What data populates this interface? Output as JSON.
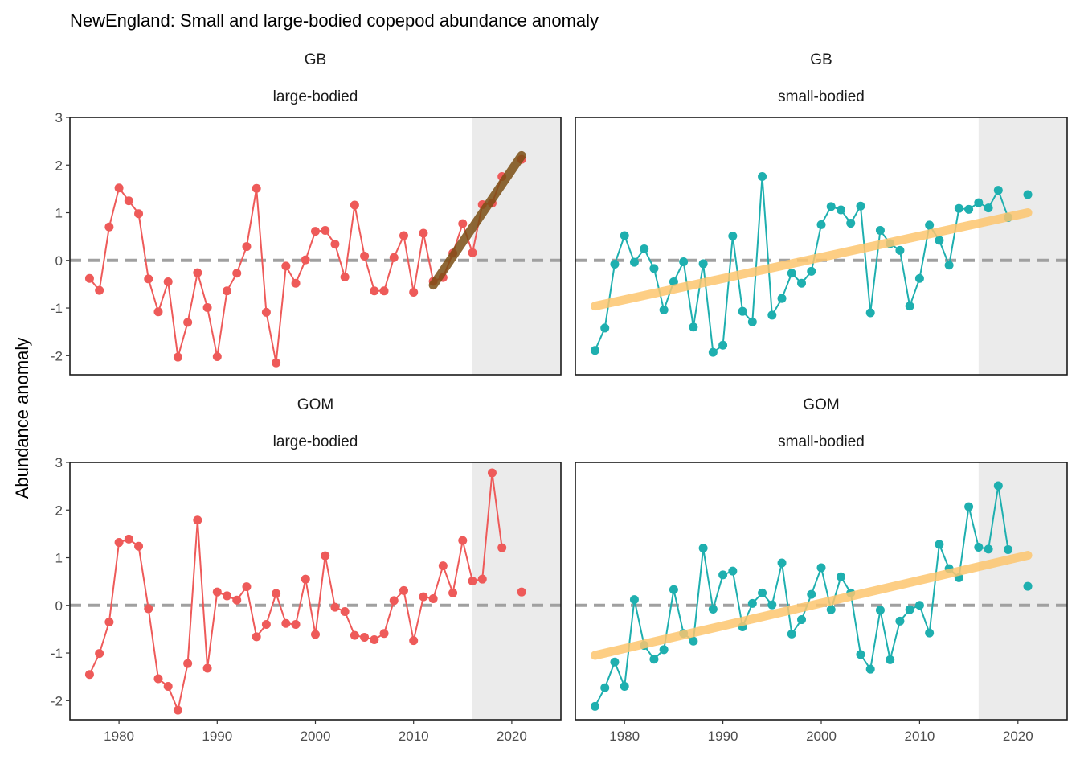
{
  "chart_data": {
    "type": "line",
    "title": "NewEngland: Small and large-bodied copepod abundance anomaly",
    "xlabel": "",
    "ylabel": "Abundance anomaly",
    "xlim": [
      1975,
      2025
    ],
    "ylim": [
      -2.4,
      3.0
    ],
    "x_ticks": [
      1980,
      1990,
      2000,
      2010,
      2020
    ],
    "y_ticks": [
      -2,
      -1,
      0,
      1,
      2,
      3
    ],
    "reference_line": 0,
    "highlight_period": [
      2016,
      2025
    ],
    "colors": {
      "large-bodied": "#ee5a59",
      "small-bodied": "#1eafaf",
      "trend_increasing": "#fdc66f",
      "trend_recent": "#7b4e14",
      "reference": "#a0a0a0",
      "highlight": "#ebebeb"
    },
    "panels": [
      {
        "region": "GB",
        "group": "large-bodied",
        "x": [
          1977,
          1978,
          1979,
          1980,
          1981,
          1982,
          1983,
          1984,
          1985,
          1986,
          1987,
          1988,
          1989,
          1990,
          1991,
          1992,
          1993,
          1994,
          1995,
          1996,
          1997,
          1998,
          1999,
          2000,
          2001,
          2002,
          2003,
          2004,
          2005,
          2006,
          2007,
          2008,
          2009,
          2010,
          2011,
          2012,
          2013,
          2014,
          2015,
          2016,
          2017,
          2018,
          2019,
          2021
        ],
        "y": [
          -0.38,
          -0.63,
          0.7,
          1.52,
          1.25,
          0.98,
          -0.39,
          -1.08,
          -0.45,
          -2.03,
          -1.3,
          -0.26,
          -0.99,
          -2.02,
          -0.64,
          -0.27,
          0.29,
          1.51,
          -1.09,
          -2.15,
          -0.12,
          -0.48,
          0.01,
          0.61,
          0.63,
          0.34,
          -0.35,
          1.16,
          0.09,
          -0.64,
          -0.64,
          0.06,
          0.52,
          -0.67,
          0.57,
          -0.44,
          -0.36,
          0.15,
          0.77,
          0.16,
          1.17,
          1.2,
          1.76,
          2.12
        ],
        "line_breaks_after": [
          2019
        ],
        "trend": {
          "type": "recent",
          "x": [
            2012,
            2021
          ],
          "y": [
            -0.52,
            2.2
          ]
        }
      },
      {
        "region": "GB",
        "group": "small-bodied",
        "x": [
          1977,
          1978,
          1979,
          1980,
          1981,
          1982,
          1983,
          1984,
          1985,
          1986,
          1987,
          1988,
          1989,
          1990,
          1991,
          1992,
          1993,
          1994,
          1995,
          1996,
          1997,
          1998,
          1999,
          2000,
          2001,
          2002,
          2003,
          2004,
          2005,
          2006,
          2007,
          2008,
          2009,
          2010,
          2011,
          2012,
          2013,
          2014,
          2015,
          2016,
          2017,
          2018,
          2019,
          2021
        ],
        "y": [
          -1.89,
          -1.42,
          -0.08,
          0.52,
          -0.04,
          0.24,
          -0.17,
          -1.04,
          -0.45,
          -0.03,
          -1.4,
          -0.07,
          -1.93,
          -1.78,
          0.51,
          -1.07,
          -1.29,
          1.76,
          -1.15,
          -0.8,
          -0.27,
          -0.48,
          -0.23,
          0.75,
          1.13,
          1.06,
          0.78,
          1.14,
          -1.1,
          0.63,
          0.35,
          0.21,
          -0.96,
          -0.38,
          0.74,
          0.42,
          -0.1,
          1.09,
          1.07,
          1.21,
          1.1,
          1.47,
          0.9,
          1.38
        ],
        "line_breaks_after": [
          2019
        ],
        "trend": {
          "type": "increasing",
          "x": [
            1977,
            2021
          ],
          "y": [
            -0.96,
            1.0
          ]
        }
      },
      {
        "region": "GOM",
        "group": "large-bodied",
        "x": [
          1977,
          1978,
          1979,
          1980,
          1981,
          1982,
          1983,
          1984,
          1985,
          1986,
          1987,
          1988,
          1989,
          1990,
          1991,
          1992,
          1993,
          1994,
          1995,
          1996,
          1997,
          1998,
          1999,
          2000,
          2001,
          2002,
          2003,
          2004,
          2005,
          2006,
          2007,
          2008,
          2009,
          2010,
          2011,
          2012,
          2013,
          2014,
          2015,
          2016,
          2017,
          2018,
          2019,
          2021
        ],
        "y": [
          -1.45,
          -1.01,
          -0.35,
          1.32,
          1.39,
          1.24,
          -0.07,
          -1.54,
          -1.7,
          -2.2,
          -1.22,
          1.79,
          -1.32,
          0.28,
          0.2,
          0.11,
          0.39,
          -0.66,
          -0.4,
          0.25,
          -0.38,
          -0.4,
          0.55,
          -0.61,
          1.04,
          -0.04,
          -0.13,
          -0.63,
          -0.67,
          -0.72,
          -0.59,
          0.1,
          0.31,
          -0.74,
          0.18,
          0.14,
          0.83,
          0.26,
          1.36,
          0.51,
          0.55,
          2.78,
          1.21,
          0.28
        ],
        "line_breaks_after": [
          2019
        ],
        "trend": null
      },
      {
        "region": "GOM",
        "group": "small-bodied",
        "x": [
          1977,
          1978,
          1979,
          1980,
          1981,
          1982,
          1983,
          1984,
          1985,
          1986,
          1987,
          1988,
          1989,
          1990,
          1991,
          1992,
          1993,
          1994,
          1995,
          1996,
          1997,
          1998,
          1999,
          2000,
          2001,
          2002,
          2003,
          2004,
          2005,
          2006,
          2007,
          2008,
          2009,
          2010,
          2011,
          2012,
          2013,
          2014,
          2015,
          2016,
          2017,
          2018,
          2019,
          2021
        ],
        "y": [
          -2.12,
          -1.73,
          -1.19,
          -1.7,
          0.12,
          -0.84,
          -1.13,
          -0.93,
          0.33,
          -0.59,
          -0.75,
          1.2,
          -0.08,
          0.64,
          0.72,
          -0.45,
          0.04,
          0.26,
          0.01,
          0.89,
          -0.6,
          -0.3,
          0.23,
          0.79,
          -0.09,
          0.6,
          0.26,
          -1.03,
          -1.34,
          -0.1,
          -1.14,
          -0.33,
          -0.09,
          0.0,
          -0.58,
          1.28,
          0.77,
          0.58,
          2.07,
          1.22,
          1.18,
          2.51,
          1.17,
          0.4
        ],
        "line_breaks_after": [
          2019
        ],
        "trend": {
          "type": "increasing",
          "x": [
            1977,
            2021
          ],
          "y": [
            -1.05,
            1.05
          ]
        }
      }
    ]
  }
}
